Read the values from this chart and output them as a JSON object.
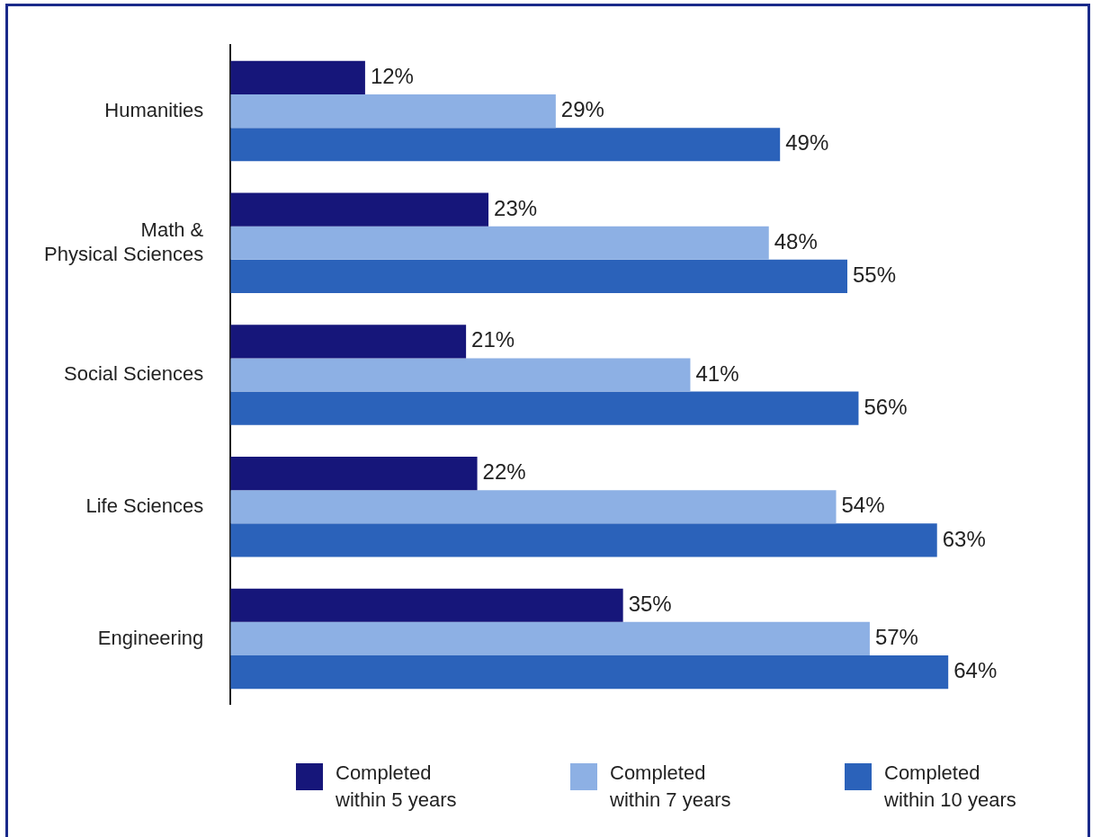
{
  "chart_data": {
    "type": "bar",
    "orientation": "horizontal",
    "categories": [
      "Humanities",
      [
        "Math &",
        "Physical Sciences"
      ],
      "Social Sciences",
      "Life Sciences",
      "Engineering"
    ],
    "series": [
      {
        "name": "Completed within 5 years",
        "color": "#16167a",
        "values": [
          12,
          23,
          21,
          22,
          35
        ],
        "value_labels": [
          "12%",
          "23%",
          "21%",
          "22%",
          "35%"
        ]
      },
      {
        "name": "Completed within 7 years",
        "color": "#8db0e4",
        "values": [
          29,
          48,
          41,
          54,
          57
        ],
        "value_labels": [
          "29%",
          "48%",
          "41%",
          "54%",
          "57%"
        ]
      },
      {
        "name": "Completed within 10 years",
        "color": "#2b62ba",
        "values": [
          49,
          55,
          56,
          63,
          64
        ],
        "value_labels": [
          "49%",
          "55%",
          "56%",
          "63%",
          "64%"
        ]
      }
    ],
    "legend": "bottom",
    "tick_labels": "y",
    "grid": false
  }
}
